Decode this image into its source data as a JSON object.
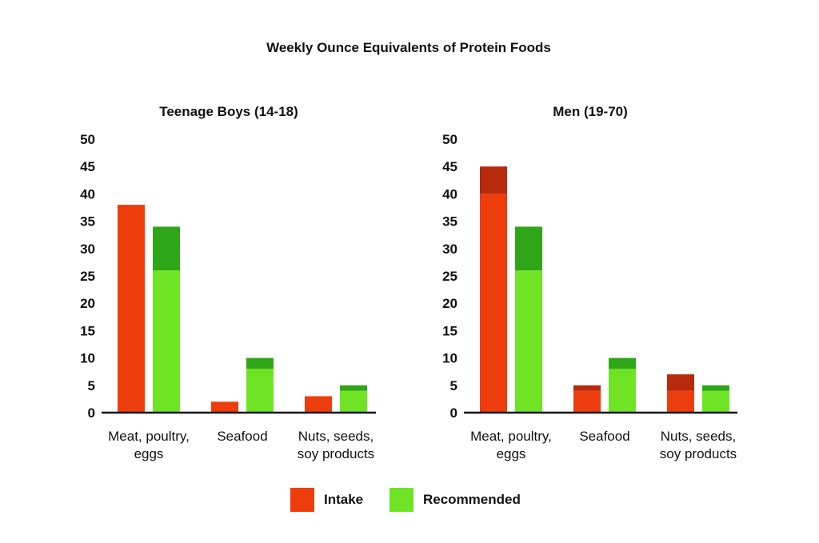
{
  "figure": {
    "title": "Weekly Ounce Equivalents of Protein Foods"
  },
  "colors": {
    "intake": "#ee3d0c",
    "intake_range": "#b72a0c",
    "recommended": "#6fe425",
    "recommended_range": "#2fa617"
  },
  "legend": [
    {
      "key": "intake",
      "label": "Intake"
    },
    {
      "key": "recommended",
      "label": "Recommended"
    }
  ],
  "chart_data": [
    {
      "type": "bar",
      "title": "Teenage Boys (14-18)",
      "categories": [
        [
          "Meat, poultry,",
          "eggs"
        ],
        [
          "Seafood"
        ],
        [
          "Nuts, seeds,",
          "soy products"
        ]
      ],
      "ylim": [
        0,
        50
      ],
      "yticks": [
        0,
        5,
        10,
        15,
        20,
        25,
        30,
        35,
        40,
        45,
        50
      ],
      "series": [
        {
          "name": "Intake",
          "key": "intake",
          "low": [
            38,
            2,
            3
          ],
          "high": [
            38,
            2,
            3
          ]
        },
        {
          "name": "Recommended",
          "key": "recommended",
          "low": [
            26,
            8,
            4
          ],
          "high": [
            34,
            10,
            5
          ]
        }
      ]
    },
    {
      "type": "bar",
      "title": "Men (19-70)",
      "categories": [
        [
          "Meat, poultry,",
          "eggs"
        ],
        [
          "Seafood"
        ],
        [
          "Nuts, seeds,",
          "soy products"
        ]
      ],
      "ylim": [
        0,
        50
      ],
      "yticks": [
        0,
        5,
        10,
        15,
        20,
        25,
        30,
        35,
        40,
        45,
        50
      ],
      "series": [
        {
          "name": "Intake",
          "key": "intake",
          "low": [
            40,
            4,
            4
          ],
          "high": [
            45,
            5,
            7
          ]
        },
        {
          "name": "Recommended",
          "key": "recommended",
          "low": [
            26,
            8,
            4
          ],
          "high": [
            34,
            10,
            5
          ]
        }
      ]
    }
  ]
}
